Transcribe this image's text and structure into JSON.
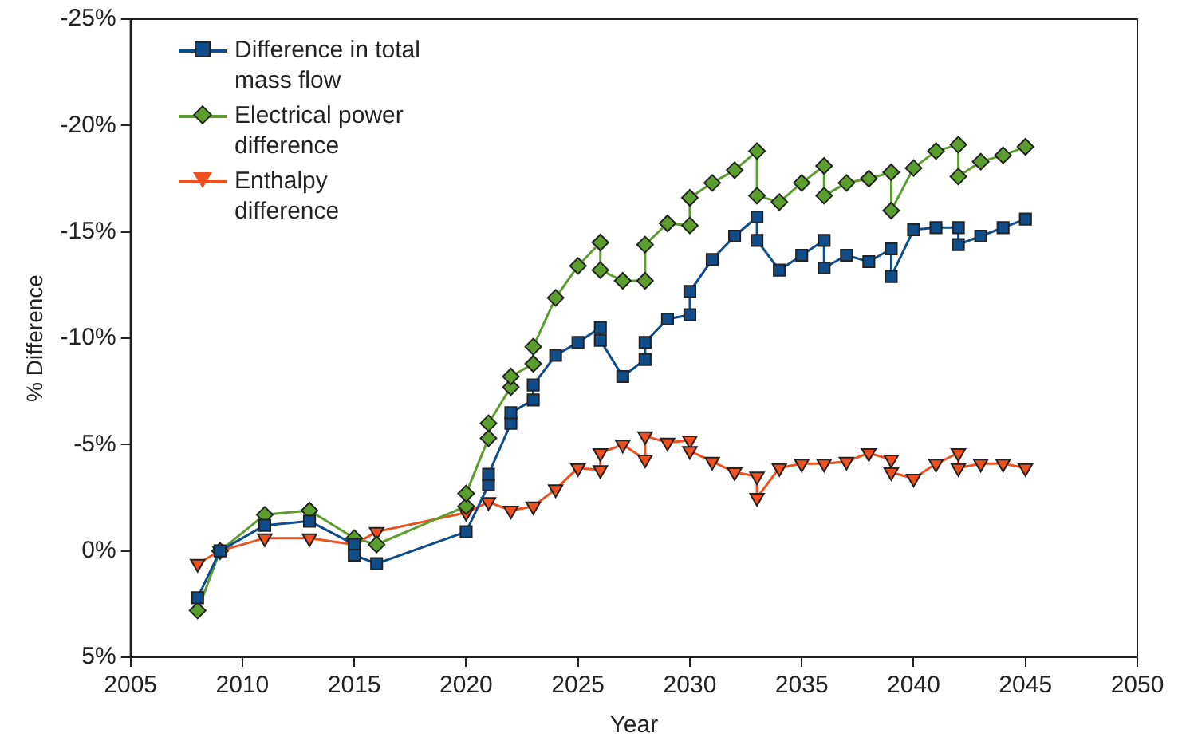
{
  "chart_data": {
    "type": "line",
    "xlabel": "Year",
    "ylabel": "% Difference",
    "xlim": [
      2005,
      2050
    ],
    "xticks": [
      2005,
      2010,
      2015,
      2020,
      2025,
      2030,
      2035,
      2040,
      2045,
      2050
    ],
    "ylim": [
      5,
      -25
    ],
    "yticks": [
      {
        "value": 5,
        "label": "5%"
      },
      {
        "value": 0,
        "label": "0%"
      },
      {
        "value": -5,
        "label": "-5%"
      },
      {
        "value": -10,
        "label": "-10%"
      },
      {
        "value": -15,
        "label": "-15%"
      },
      {
        "value": -20,
        "label": "-20%"
      },
      {
        "value": -25,
        "label": "-25%"
      }
    ],
    "grid": false,
    "legend": "top left",
    "line_style": "solid",
    "series": [
      {
        "name": "Difference in total mass flow",
        "color": "#0f4c8a",
        "marker": "square",
        "x": [
          2008,
          2009,
          2011,
          2013,
          2015,
          2015,
          2016,
          2020,
          2021,
          2021,
          2022,
          2022,
          2023,
          2023,
          2024,
          2025,
          2026,
          2026,
          2027,
          2028,
          2028,
          2029,
          2030,
          2030,
          2031,
          2032,
          2033,
          2033,
          2034,
          2035,
          2036,
          2036,
          2037,
          2038,
          2039,
          2039,
          2040,
          2041,
          2042,
          2042,
          2043,
          2044,
          2045
        ],
        "values": [
          2.2,
          0,
          -1.2,
          -1.4,
          -0.3,
          0.2,
          0.6,
          -0.9,
          -3.1,
          -3.6,
          -6.0,
          -6.5,
          -7.1,
          -7.8,
          -9.2,
          -9.8,
          -10.5,
          -9.9,
          -8.2,
          -9.0,
          -9.8,
          -10.9,
          -11.1,
          -12.2,
          -13.7,
          -14.8,
          -15.7,
          -14.6,
          -13.2,
          -13.9,
          -14.6,
          -13.3,
          -13.9,
          -13.6,
          -14.2,
          -12.9,
          -15.1,
          -15.2,
          -15.2,
          -14.4,
          -14.8,
          -15.2,
          -15.6
        ]
      },
      {
        "name": "Electrical power difference",
        "color": "#5c9e2e",
        "marker": "diamond",
        "x": [
          2008,
          2009,
          2011,
          2013,
          2015,
          2016,
          2020,
          2020,
          2021,
          2021,
          2022,
          2022,
          2023,
          2023,
          2024,
          2025,
          2026,
          2026,
          2027,
          2028,
          2028,
          2029,
          2030,
          2030,
          2031,
          2032,
          2033,
          2033,
          2034,
          2035,
          2036,
          2036,
          2037,
          2038,
          2039,
          2039,
          2040,
          2041,
          2042,
          2042,
          2043,
          2044,
          2045
        ],
        "values": [
          2.8,
          0,
          -1.7,
          -1.9,
          -0.6,
          -0.3,
          -2.1,
          -2.7,
          -5.3,
          -6.0,
          -7.7,
          -8.2,
          -8.8,
          -9.6,
          -11.9,
          -13.4,
          -14.5,
          -13.2,
          -12.7,
          -12.7,
          -14.4,
          -15.4,
          -15.3,
          -16.6,
          -17.3,
          -17.9,
          -18.8,
          -16.7,
          -16.4,
          -17.3,
          -18.1,
          -16.7,
          -17.3,
          -17.5,
          -17.8,
          -16.0,
          -18.0,
          -18.8,
          -19.1,
          -17.6,
          -18.3,
          -18.6,
          -19.0
        ]
      },
      {
        "name": "Enthalpy difference",
        "color": "#f0501e",
        "marker": "triangle",
        "x": [
          2008,
          2009,
          2011,
          2013,
          2015,
          2016,
          2020,
          2021,
          2022,
          2023,
          2024,
          2025,
          2026,
          2026,
          2027,
          2028,
          2028,
          2029,
          2030,
          2030,
          2031,
          2032,
          2033,
          2033,
          2034,
          2035,
          2036,
          2037,
          2038,
          2039,
          2039,
          2040,
          2041,
          2042,
          2042,
          2043,
          2044,
          2045
        ],
        "values": [
          0.6,
          0,
          -0.6,
          -0.6,
          -0.3,
          -0.9,
          -1.8,
          -2.3,
          -1.9,
          -2.1,
          -2.9,
          -3.9,
          -3.8,
          -4.6,
          -5.0,
          -4.3,
          -5.4,
          -5.1,
          -5.2,
          -4.7,
          -4.2,
          -3.7,
          -3.5,
          -2.5,
          -3.9,
          -4.1,
          -4.1,
          -4.2,
          -4.6,
          -4.3,
          -3.7,
          -3.4,
          -4.1,
          -4.6,
          -3.9,
          -4.1,
          -4.1,
          -3.9
        ]
      }
    ]
  }
}
